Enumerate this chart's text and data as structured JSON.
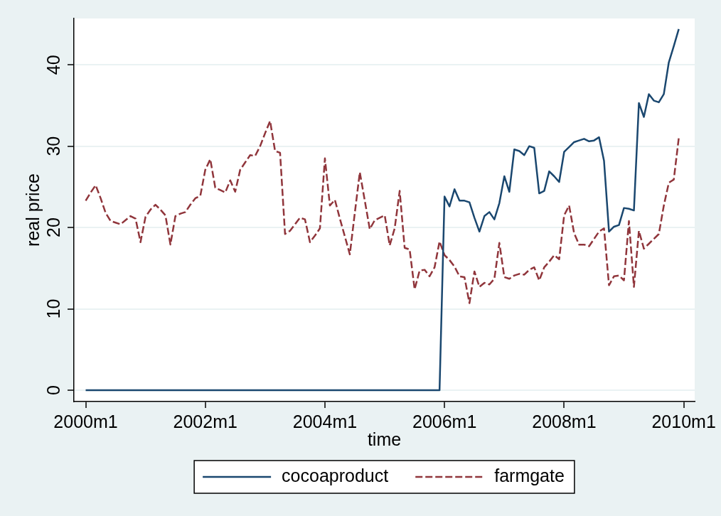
{
  "chart_data": {
    "type": "line",
    "xlabel": "time",
    "ylabel": "real price",
    "x": [
      "2000-01",
      "2000-02",
      "2000-03",
      "2000-04",
      "2000-05",
      "2000-06",
      "2000-07",
      "2000-08",
      "2000-09",
      "2000-10",
      "2000-11",
      "2000-12",
      "2001-01",
      "2001-02",
      "2001-03",
      "2001-04",
      "2001-05",
      "2001-06",
      "2001-07",
      "2001-08",
      "2001-09",
      "2001-10",
      "2001-11",
      "2001-12",
      "2002-01",
      "2002-02",
      "2002-03",
      "2002-04",
      "2002-05",
      "2002-06",
      "2002-07",
      "2002-08",
      "2002-09",
      "2002-10",
      "2002-11",
      "2002-12",
      "2003-01",
      "2003-02",
      "2003-03",
      "2003-04",
      "2003-05",
      "2003-06",
      "2003-07",
      "2003-08",
      "2003-09",
      "2003-10",
      "2003-11",
      "2003-12",
      "2004-01",
      "2004-02",
      "2004-03",
      "2004-04",
      "2004-05",
      "2004-06",
      "2004-07",
      "2004-08",
      "2004-09",
      "2004-10",
      "2004-11",
      "2004-12",
      "2005-01",
      "2005-02",
      "2005-03",
      "2005-04",
      "2005-05",
      "2005-06",
      "2005-07",
      "2005-08",
      "2005-09",
      "2005-10",
      "2005-11",
      "2005-12",
      "2006-01",
      "2006-02",
      "2006-03",
      "2006-04",
      "2006-05",
      "2006-06",
      "2006-07",
      "2006-08",
      "2006-09",
      "2006-10",
      "2006-11",
      "2006-12",
      "2007-01",
      "2007-02",
      "2007-03",
      "2007-04",
      "2007-05",
      "2007-06",
      "2007-07",
      "2007-08",
      "2007-09",
      "2007-10",
      "2007-11",
      "2007-12",
      "2008-01",
      "2008-02",
      "2008-03",
      "2008-04",
      "2008-05",
      "2008-06",
      "2008-07",
      "2008-08",
      "2008-09",
      "2008-10",
      "2008-11",
      "2008-12",
      "2009-01",
      "2009-02",
      "2009-03",
      "2009-04",
      "2009-05",
      "2009-06",
      "2009-07",
      "2009-08",
      "2009-09",
      "2009-10",
      "2009-11",
      "2009-12"
    ],
    "series": [
      {
        "name": "cocoaproduct",
        "color": "#1a476f",
        "line_style": "solid",
        "values": [
          0,
          0,
          0,
          0,
          0,
          0,
          0,
          0,
          0,
          0,
          0,
          0,
          0,
          0,
          0,
          0,
          0,
          0,
          0,
          0,
          0,
          0,
          0,
          0,
          0,
          0,
          0,
          0,
          0,
          0,
          0,
          0,
          0,
          0,
          0,
          0,
          0,
          0,
          0,
          0,
          0,
          0,
          0,
          0,
          0,
          0,
          0,
          0,
          0,
          0,
          0,
          0,
          0,
          0,
          0,
          0,
          0,
          0,
          0,
          0,
          0,
          0,
          0,
          0,
          0,
          0,
          0,
          0,
          0,
          0,
          0,
          0,
          23.8,
          22.6,
          24.7,
          23.3,
          23.3,
          23.1,
          21.2,
          19.5,
          21.4,
          21.9,
          21.0,
          23.0,
          26.3,
          24.4,
          29.6,
          29.4,
          28.9,
          30.0,
          29.8,
          24.2,
          24.5,
          26.9,
          26.3,
          25.6,
          29.3,
          29.9,
          30.5,
          30.7,
          30.9,
          30.6,
          30.7,
          31.1,
          28.2,
          19.5,
          20.1,
          20.3,
          22.4,
          22.3,
          22.1,
          35.3,
          33.6,
          36.4,
          35.6,
          35.4,
          36.4,
          40.3,
          42.3,
          44.4
        ]
      },
      {
        "name": "farmgate",
        "color": "#90353b",
        "line_style": "dashed",
        "values": [
          23.3,
          24.3,
          25.2,
          23.6,
          21.8,
          20.8,
          20.6,
          20.4,
          20.9,
          21.4,
          21.1,
          18.2,
          21.3,
          22.2,
          22.8,
          22.2,
          21.5,
          17.9,
          21.4,
          21.7,
          21.9,
          22.8,
          23.6,
          23.9,
          27.1,
          28.4,
          24.9,
          24.6,
          24.3,
          25.8,
          24.4,
          27.1,
          28.0,
          28.9,
          28.8,
          30.0,
          31.6,
          33.1,
          29.4,
          29.2,
          19.2,
          19.6,
          20.4,
          21.2,
          21.0,
          18.2,
          19.0,
          19.9,
          28.5,
          22.7,
          23.4,
          21.1,
          18.9,
          16.7,
          21.8,
          26.8,
          23.3,
          19.8,
          20.9,
          21.2,
          21.5,
          17.8,
          19.9,
          24.5,
          17.5,
          17.3,
          12.4,
          14.7,
          14.8,
          14.0,
          15.1,
          18.3,
          16.6,
          16.0,
          15.2,
          14.0,
          13.9,
          10.7,
          14.6,
          12.7,
          13.2,
          13.0,
          13.7,
          18.1,
          13.9,
          13.7,
          14.1,
          14.3,
          14.2,
          14.8,
          15.1,
          13.5,
          15.1,
          15.8,
          16.6,
          16.1,
          21.5,
          22.7,
          19.3,
          17.9,
          17.9,
          17.7,
          18.6,
          19.5,
          19.9,
          12.9,
          14.0,
          14.1,
          13.5,
          20.8,
          12.7,
          19.6,
          17.4,
          18.0,
          18.6,
          19.2,
          22.7,
          25.5,
          25.9,
          31.0
        ]
      }
    ],
    "xlim": [
      "1999-10-21",
      "2010-03-07"
    ],
    "xticks": [
      {
        "value": "2000-01",
        "label": "2000m1"
      },
      {
        "value": "2002-01",
        "label": "2002m1"
      },
      {
        "value": "2004-01",
        "label": "2004m1"
      },
      {
        "value": "2006-01",
        "label": "2006m1"
      },
      {
        "value": "2008-01",
        "label": "2008m1"
      },
      {
        "value": "2010-01",
        "label": "2010m1"
      }
    ],
    "ylim": [
      -1.4,
      45.7
    ],
    "yticks": [
      0,
      10,
      20,
      30,
      40
    ],
    "grid": "y",
    "legend": "bottom",
    "marker": "none"
  }
}
